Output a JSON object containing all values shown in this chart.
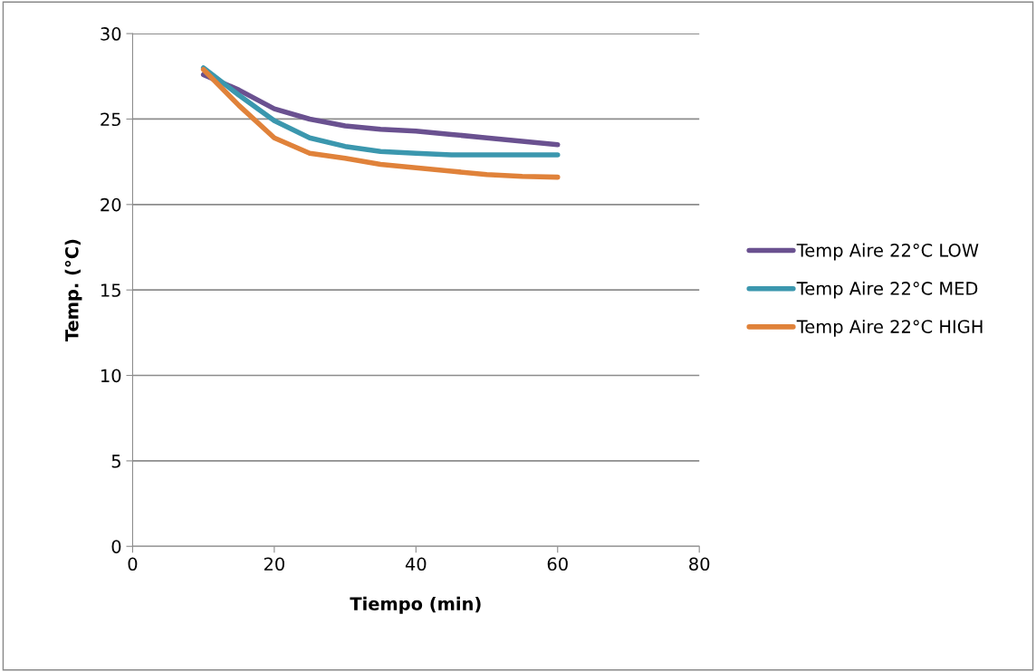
{
  "chart_data": {
    "type": "line",
    "xlabel": "Tiempo (min)",
    "ylabel": "Temp. (°C)",
    "x": [
      10,
      15,
      20,
      25,
      30,
      35,
      40,
      45,
      50,
      55,
      60
    ],
    "series": [
      {
        "name": "Temp Aire 22°C LOW",
        "color": "#6a5190",
        "values": [
          27.6,
          26.7,
          25.6,
          25.0,
          24.6,
          24.4,
          24.3,
          24.1,
          23.9,
          23.7,
          23.5
        ]
      },
      {
        "name": "Temp Aire 22°C MED",
        "color": "#3b97ae",
        "values": [
          28.0,
          26.4,
          24.9,
          23.9,
          23.4,
          23.1,
          23.0,
          22.9,
          22.9,
          22.9,
          22.9
        ]
      },
      {
        "name": "Temp Aire 22°C HIGH",
        "color": "#e0823a",
        "values": [
          27.9,
          25.8,
          23.9,
          23.0,
          22.7,
          22.35,
          22.15,
          21.95,
          21.75,
          21.65,
          21.6
        ]
      }
    ],
    "xlim": [
      0,
      80
    ],
    "xticks": [
      0,
      20,
      40,
      60,
      80
    ],
    "ylim": [
      0,
      30
    ],
    "yticks": [
      0,
      5,
      10,
      15,
      20,
      25,
      30
    ],
    "grid": "y",
    "legend": "right",
    "marker": "none",
    "line_style": "solid"
  }
}
